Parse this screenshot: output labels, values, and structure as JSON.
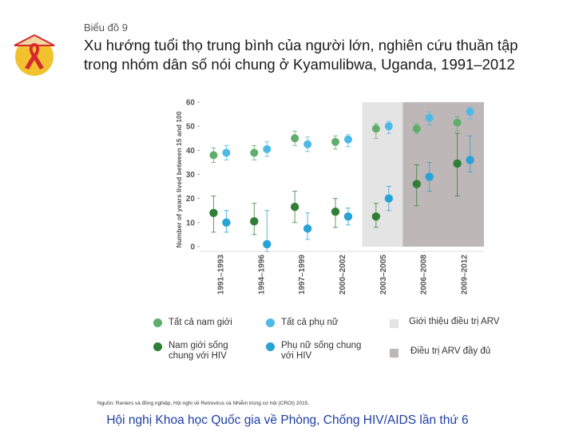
{
  "header": {
    "kicker": "Biểu đồ 9",
    "title": "Xu hướng tuổi thọ trung bình của người lớn, nghiên cứu thuần tập trong nhóm dân số nói chung ở Kyamulibwa, Uganda, 1991–2012"
  },
  "logo": {
    "icon": "red-ribbon-icon",
    "colors": {
      "circle": "#f2c22e",
      "ribbon": "#d8282f",
      "hat": "#f0d9a0"
    }
  },
  "chart_data": {
    "type": "scatter",
    "title": "",
    "ylabel": "Number of years lived between 15 and 100",
    "ylim": [
      0,
      60
    ],
    "yticks": [
      0,
      10,
      20,
      30,
      40,
      50,
      60
    ],
    "ytick_labels": [
      "0",
      "10",
      "20",
      "30",
      "40",
      "50",
      "60"
    ],
    "categories": [
      "1991–1993",
      "1994–1996",
      "1997–1999",
      "2000–2002",
      "2003–2005",
      "2006–2008",
      "2009–2012"
    ],
    "shaded_periods": [
      {
        "categories": [
          "2003–2005"
        ],
        "color": "#e4e4e4",
        "legend": "Giới thiệu điều trị ARV"
      },
      {
        "categories": [
          "2006–2008",
          "2009–2012"
        ],
        "color": "#bdb7b7",
        "legend": "Điều trị ARV đầy đủ"
      }
    ],
    "series": [
      {
        "name": "Tất cả nam giới",
        "color": "#5fae6c",
        "values": [
          38,
          39,
          45,
          43.5,
          49,
          49,
          51.5
        ],
        "low": [
          35,
          36,
          42,
          40.5,
          45,
          47,
          48
        ],
        "high": [
          41,
          42,
          48,
          46,
          51,
          51,
          54
        ]
      },
      {
        "name": "Tất cả phụ nữ",
        "color": "#4db9e6",
        "values": [
          39,
          40.5,
          42.5,
          44.5,
          50,
          53.5,
          56
        ],
        "low": [
          36,
          37.5,
          39.5,
          41.5,
          47,
          50.5,
          53
        ],
        "high": [
          42,
          43.5,
          45.5,
          46.5,
          52,
          56,
          58
        ]
      },
      {
        "name": "Nam giới sống chung với HIV",
        "color": "#2f7f37",
        "values": [
          14,
          10.5,
          16.5,
          14.5,
          12.5,
          26,
          34.5
        ],
        "low": [
          6,
          5,
          10,
          8,
          8,
          17,
          21
        ],
        "high": [
          21,
          18,
          23,
          20,
          18,
          34,
          47
        ]
      },
      {
        "name": "Phụ nữ sống chung với HIV",
        "color": "#27a3d6",
        "values": [
          10,
          1,
          7.5,
          12.5,
          20,
          29,
          36
        ],
        "low": [
          6,
          -2,
          3,
          9,
          15,
          23,
          31
        ],
        "high": [
          15,
          15,
          14,
          16,
          25,
          35,
          46
        ]
      }
    ]
  },
  "legend": {
    "items": [
      {
        "label": "Tất cả nam giới"
      },
      {
        "label": "Tất cả phụ nữ"
      },
      {
        "label": "Giới thiệu điều trị ARV"
      },
      {
        "label": "Nam giới sống chung với HIV"
      },
      {
        "label": "Phụ nữ sống chung với HIV"
      },
      {
        "label": "Điều trị ARV đầy đủ"
      }
    ]
  },
  "source": "Nguồn: Reniers và đồng nghiệp, Hội nghị về Retrovirus và Nhiễm trùng cơ hội (CROI) 2015.",
  "footer": "Hội nghị Khoa học Quốc gia về Phòng, Chống HIV/AIDS lần thứ 6"
}
